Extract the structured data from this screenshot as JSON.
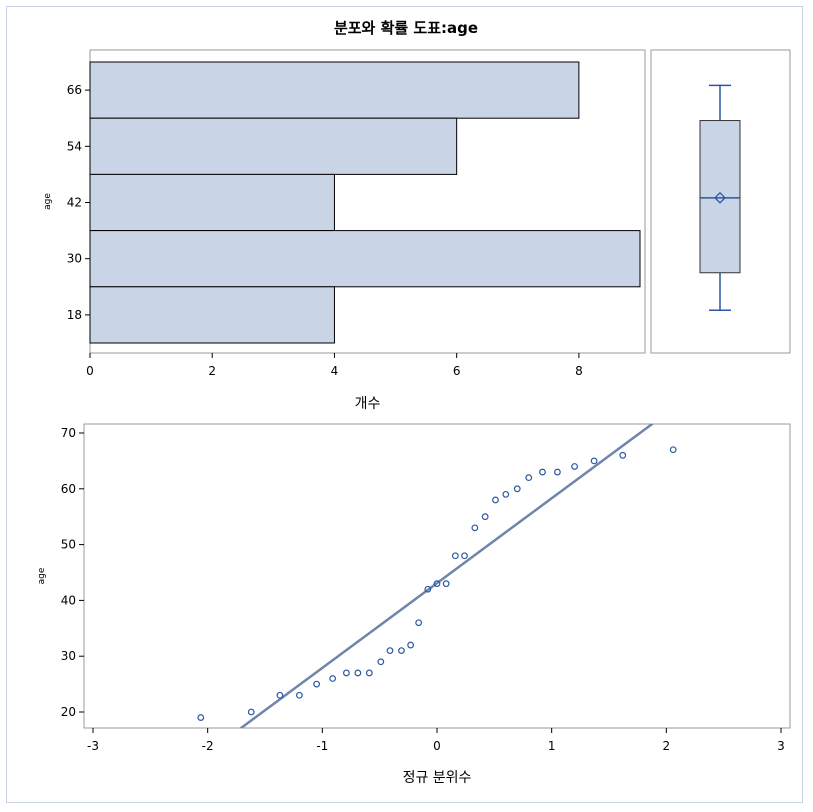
{
  "title": "분포와 확률 도표:age",
  "chart_data": [
    {
      "type": "bar",
      "orientation": "horizontal",
      "categories": [
        "18",
        "30",
        "42",
        "54",
        "66"
      ],
      "values": [
        4,
        9,
        4,
        6,
        8
      ],
      "xlabel": "개수",
      "ylabel": "age",
      "xlim": [
        0,
        9
      ],
      "xticks": [
        "0",
        "2",
        "4",
        "6",
        "8"
      ],
      "bar_color": "#c9d5e6"
    },
    {
      "type": "boxplot",
      "min": 19,
      "q1": 27,
      "median": 43,
      "mean": 43,
      "q3": 59.5,
      "max": 67,
      "color": "#2b57a3"
    },
    {
      "type": "scatter",
      "xlabel": "정규 분위수",
      "ylabel": "age",
      "xlim": [
        -3,
        3
      ],
      "ylim": [
        17,
        72
      ],
      "xticks": [
        "-3",
        "-2",
        "-1",
        "0",
        "1",
        "2",
        "3"
      ],
      "yticks": [
        "20",
        "30",
        "40",
        "50",
        "60",
        "70"
      ],
      "points": [
        [
          -2.06,
          19
        ],
        [
          -1.62,
          20
        ],
        [
          -1.37,
          23
        ],
        [
          -1.2,
          23
        ],
        [
          -1.05,
          25
        ],
        [
          -0.91,
          26
        ],
        [
          -0.79,
          27
        ],
        [
          -0.69,
          27
        ],
        [
          -0.59,
          27
        ],
        [
          -0.49,
          29
        ],
        [
          -0.41,
          31
        ],
        [
          -0.31,
          31
        ],
        [
          -0.23,
          32
        ],
        [
          -0.16,
          36
        ],
        [
          -0.08,
          42
        ],
        [
          0,
          43
        ],
        [
          0.08,
          43
        ],
        [
          0.16,
          48
        ],
        [
          0.24,
          48
        ],
        [
          0.33,
          53
        ],
        [
          0.42,
          55
        ],
        [
          0.51,
          58
        ],
        [
          0.6,
          59
        ],
        [
          0.7,
          60
        ],
        [
          0.8,
          62
        ],
        [
          0.92,
          63
        ],
        [
          1.05,
          63
        ],
        [
          1.2,
          64
        ],
        [
          1.37,
          65
        ],
        [
          1.62,
          66
        ],
        [
          2.06,
          67
        ]
      ],
      "reference_line": {
        "intercept": 43.1,
        "slope": 15.2
      },
      "point_color": "#2b57a3",
      "line_color": "#6f86ab"
    }
  ]
}
